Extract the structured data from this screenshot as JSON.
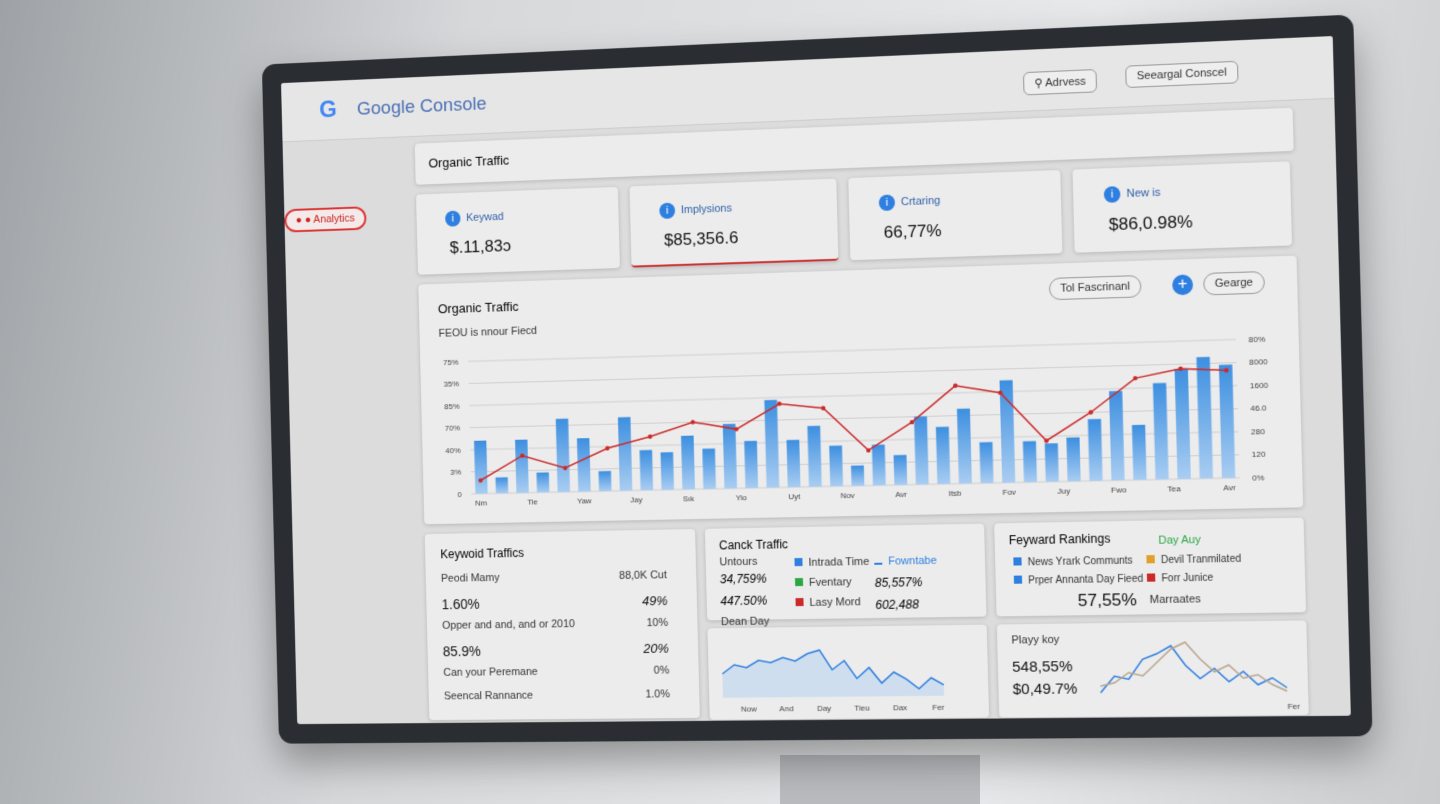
{
  "header": {
    "brand": "Google Console",
    "search": "Adrvess",
    "button": "Seeargal Conscel"
  },
  "sidebar": {
    "item": "Analytics"
  },
  "page_title": "Organic Traffic",
  "kpis": [
    {
      "label": "Keywad",
      "value": "$.11,83ɔ"
    },
    {
      "label": "Implysions",
      "value": "$85,356.6"
    },
    {
      "label": "Crtaring",
      "value": "66,77%"
    },
    {
      "label": "New is",
      "value": "$86,0.98%"
    }
  ],
  "main_chart": {
    "title": "Organic Traffic",
    "subtitle": "FEOU is nnour Fiecd",
    "buttons": [
      "Tol Fascrinanl",
      "Gearge"
    ],
    "ylim": [
      0,
      100
    ],
    "bar_color": "#3d8fe0",
    "line_color": "#cc2a2a",
    "bars": [
      40,
      12,
      40,
      15,
      55,
      40,
      15,
      55,
      30,
      28,
      40,
      30,
      48,
      35,
      65,
      35,
      45,
      30,
      15,
      30,
      22,
      50,
      42,
      55,
      30,
      75,
      30,
      28,
      32,
      45,
      65,
      40,
      70,
      80,
      88,
      82
    ],
    "line": [
      10,
      28,
      18,
      32,
      40,
      50,
      44,
      62,
      58,
      26,
      46,
      72,
      66,
      30,
      50,
      74,
      80,
      78
    ],
    "x_labels": [
      "Nm",
      "Tie",
      "Yaw",
      "Jay",
      "Sık",
      "Yio",
      "Uyt",
      "Nov",
      "Avr",
      "Itsb",
      "Fov",
      "Juy",
      "Fwo",
      "Tea",
      "Avr"
    ],
    "left_axis_labels": [
      "0",
      "3%",
      "40%",
      "70%",
      "85%",
      "35%",
      "75%"
    ],
    "right_axis_labels": [
      "0%",
      "120",
      "280",
      "46.0",
      "1600",
      "8000",
      "80%"
    ]
  },
  "keyword_traffics": {
    "title": "Keywoid Traffics",
    "rows": [
      [
        "Peodi Mamy",
        "88,0K Cut"
      ],
      [
        "1.60%",
        "49%"
      ],
      [
        "Opper and and, and or 2010",
        "10%"
      ],
      [
        "85.9%",
        "20%"
      ],
      [
        "Can your Peremane",
        "0%"
      ],
      [
        "Seencal Rannance",
        "1.0%"
      ]
    ]
  },
  "canck_traffic": {
    "title": "Canck Traffic",
    "subtitle": "Untours",
    "values": [
      "34,759%",
      "447.50%"
    ],
    "legend": [
      {
        "name": "Intrada Time",
        "color": "#2f7fe0"
      },
      {
        "name": "Fowntabe",
        "color": "#2f7fe0"
      },
      {
        "name": "Fventary",
        "color": "#2aa845"
      },
      {
        "name": "Lasy Mord",
        "color": "#cc2a2a"
      }
    ],
    "legend_values": [
      "85,557%",
      "602,488"
    ]
  },
  "dean_day": {
    "title": "Dean Day",
    "ylim": [
      0,
      100
    ],
    "color": "#2f7fe0",
    "values": [
      40,
      55,
      50,
      62,
      58,
      66,
      60,
      72,
      78,
      45,
      60,
      30,
      48,
      22,
      40,
      28,
      12,
      30,
      18
    ],
    "x_labels": [
      "Now",
      "And",
      "Day",
      "Tieu",
      "Dax",
      "Fer"
    ]
  },
  "rankings": {
    "title": "Feyward Rankings",
    "badge": "Day Auy",
    "legend": [
      {
        "name": "News Yrark Communts",
        "color": "#2f7fe0"
      },
      {
        "name": "Devil Tranmilated",
        "color": "#e0a02a"
      },
      {
        "name": "Prper Annanta Day Fieed",
        "color": "#2f7fe0"
      },
      {
        "name": "Forr Junice",
        "color": "#cc2a2a"
      }
    ],
    "value": "57,55%",
    "value_label": "Marraates"
  },
  "playy_koy": {
    "title": "Playy koy",
    "values_text": [
      "548,55%",
      "$0,49.7%"
    ],
    "x_label": "Fer",
    "ylim": [
      0,
      100
    ],
    "series": [
      {
        "color": "#2f7fe0",
        "values": [
          10,
          35,
          30,
          60,
          68,
          80,
          50,
          30,
          45,
          25,
          40,
          20,
          30,
          15
        ]
      },
      {
        "color": "#b8a590",
        "values": [
          20,
          25,
          40,
          35,
          55,
          75,
          85,
          60,
          40,
          50,
          30,
          35,
          20,
          10
        ]
      }
    ]
  }
}
